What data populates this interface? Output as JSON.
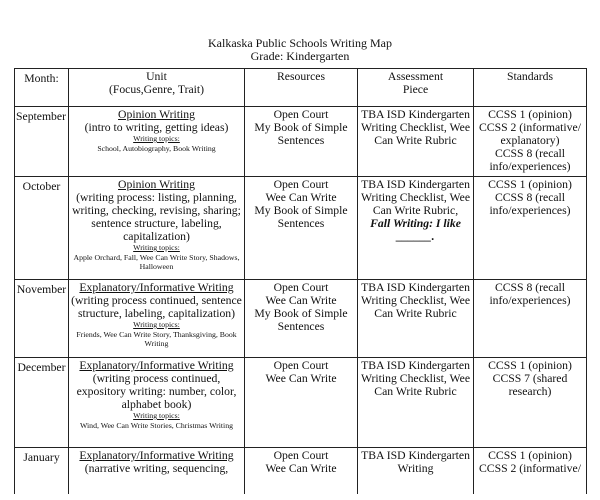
{
  "title": "Kalkaska Public Schools Writing Map",
  "grade": "Grade: Kindergarten",
  "headers": {
    "month": "Month:",
    "unit": [
      "Unit",
      "(Focus,Genre, Trait)"
    ],
    "resources": "Resources",
    "assessment": [
      "Assessment",
      "Piece"
    ],
    "standards": "Standards"
  },
  "rows": [
    {
      "month": "September",
      "unit_title": "Opinion Writing",
      "unit_desc": "(intro to writing, getting ideas)",
      "topics_label": "Writing topics:",
      "topics": "School, Autobiography, Book Writing",
      "resources": [
        "Open Court",
        "My Book of Simple Sentences"
      ],
      "assessment": "TBA ISD Kindergarten Writing Checklist, Wee Can Write Rubric",
      "standards": [
        "CCSS 1 (opinion)",
        "CCSS 2 (informative/ explanatory)",
        "CCSS 8 (recall info/experiences)"
      ]
    },
    {
      "month": "October",
      "unit_title": "Opinion Writing",
      "unit_desc": "(writing process: listing, planning, writing, checking, revising, sharing; sentence structure, labeling, capitalization)",
      "topics_label": "Writing topics:",
      "topics": "Apple Orchard, Fall, Wee Can Write Story, Shadows, Halloween",
      "resources": [
        "Open Court",
        "Wee Can Write",
        "My Book of Simple Sentences"
      ],
      "assessment": "TBA ISD Kindergarten Writing Checklist, Wee Can Write Rubric,",
      "assessment_extra": "Fall Writing: I like ______.",
      "standards": [
        "CCSS 1 (opinion)",
        "CCSS 8 (recall info/experiences)"
      ]
    },
    {
      "month": "November",
      "unit_title": "Explanatory/Informative Writing",
      "unit_desc": "(writing process continued, sentence structure, labeling, capitalization)",
      "topics_label": "Writing topics:",
      "topics": "Friends, Wee Can Write Story, Thanksgiving, Book Writing",
      "resources": [
        "Open Court",
        "Wee Can Write",
        "My Book of Simple Sentences"
      ],
      "assessment": "TBA ISD Kindergarten Writing Checklist, Wee Can Write Rubric",
      "standards": [
        "CCSS 8 (recall info/experiences)"
      ]
    },
    {
      "month": "December",
      "unit_title": "Explanatory/Informative Writing",
      "unit_desc": "(writing process continued, expository writing: number, color, alphabet book)",
      "topics_label": "Writing topics:",
      "topics": "Wind, Wee Can Write Stories, Christmas Writing",
      "resources": [
        "Open Court",
        "Wee Can Write"
      ],
      "assessment": "TBA ISD Kindergarten Writing Checklist, Wee Can Write Rubric",
      "standards": [
        "CCSS 1 (opinion)",
        "CCSS 7 (shared research)"
      ]
    },
    {
      "month": "January",
      "unit_title": "Explanatory/Informative Writing",
      "unit_desc": "(narrative writing, sequencing,",
      "resources": [
        "Open Court",
        "Wee Can Write"
      ],
      "assessment": "TBA ISD Kindergarten Writing",
      "standards": [
        "CCSS 1 (opinion)",
        "CCSS 2 (informative/"
      ]
    }
  ]
}
